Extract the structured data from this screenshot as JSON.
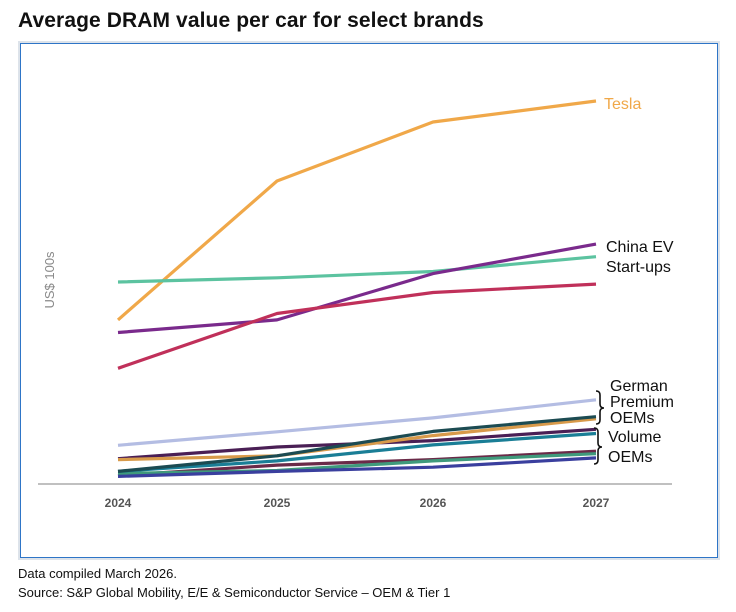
{
  "title": "Average DRAM value per car for select brands",
  "footnotes": {
    "compiled": "Data compiled March 2026.",
    "source": "Source: S&P Global Mobility, E/E & Semiconductor Service – OEM & Tier 1"
  },
  "chart_data": {
    "type": "line",
    "title": "",
    "xlabel": "",
    "ylabel": "US$ 100s",
    "x": [
      "2024",
      "2025",
      "2026",
      "2027"
    ],
    "ylim": [
      0,
      9
    ],
    "grid": false,
    "series": [
      {
        "name": "Tesla",
        "color": "#f0a849",
        "values": [
          3.9,
          7.2,
          8.6,
          9.1
        ]
      },
      {
        "name": "China EV Start-ups",
        "color": "#2f9e7e",
        "values": [
          4.8,
          4.9,
          5.05,
          5.4
        ],
        "color_alt": "#5cc3a0"
      },
      {
        "name": "China EV Start-ups",
        "color": "#7a2a8c",
        "values": [
          3.6,
          3.9,
          5.0,
          5.7
        ]
      },
      {
        "name": "China EV Start-ups",
        "color": "#c0305a",
        "values": [
          2.75,
          4.05,
          4.55,
          4.75
        ]
      },
      {
        "values": [
          0.92,
          1.24,
          1.57,
          2.0
        ],
        "color": "#b4bde3"
      },
      {
        "values": [
          0.3,
          0.67,
          1.25,
          1.6
        ],
        "color": "#1c4b52"
      },
      {
        "values": [
          0.58,
          0.67,
          1.15,
          1.55
        ],
        "color": "#d89a4a"
      },
      {
        "values": [
          0.6,
          0.88,
          1.03,
          1.3
        ],
        "color": "#4a1f55"
      },
      {
        "values": [
          0.3,
          0.55,
          0.93,
          1.2
        ],
        "color": "#1a7e96"
      },
      {
        "values": [
          0.2,
          0.45,
          0.58,
          0.78
        ],
        "color": "#6a2a48"
      },
      {
        "values": [
          0.25,
          0.32,
          0.55,
          0.72
        ],
        "color": "#3f9a7c"
      },
      {
        "values": [
          0.18,
          0.3,
          0.4,
          0.62
        ],
        "color": "#3a3f9e"
      }
    ],
    "annotations": {
      "tesla": "Tesla",
      "china_line1": "China EV",
      "china_line2": "Start-ups",
      "german_line1": "German",
      "german_line2": "Premium",
      "german_line3": "OEMs",
      "volume_line1": "Volume",
      "volume_line2": "OEMs"
    }
  }
}
